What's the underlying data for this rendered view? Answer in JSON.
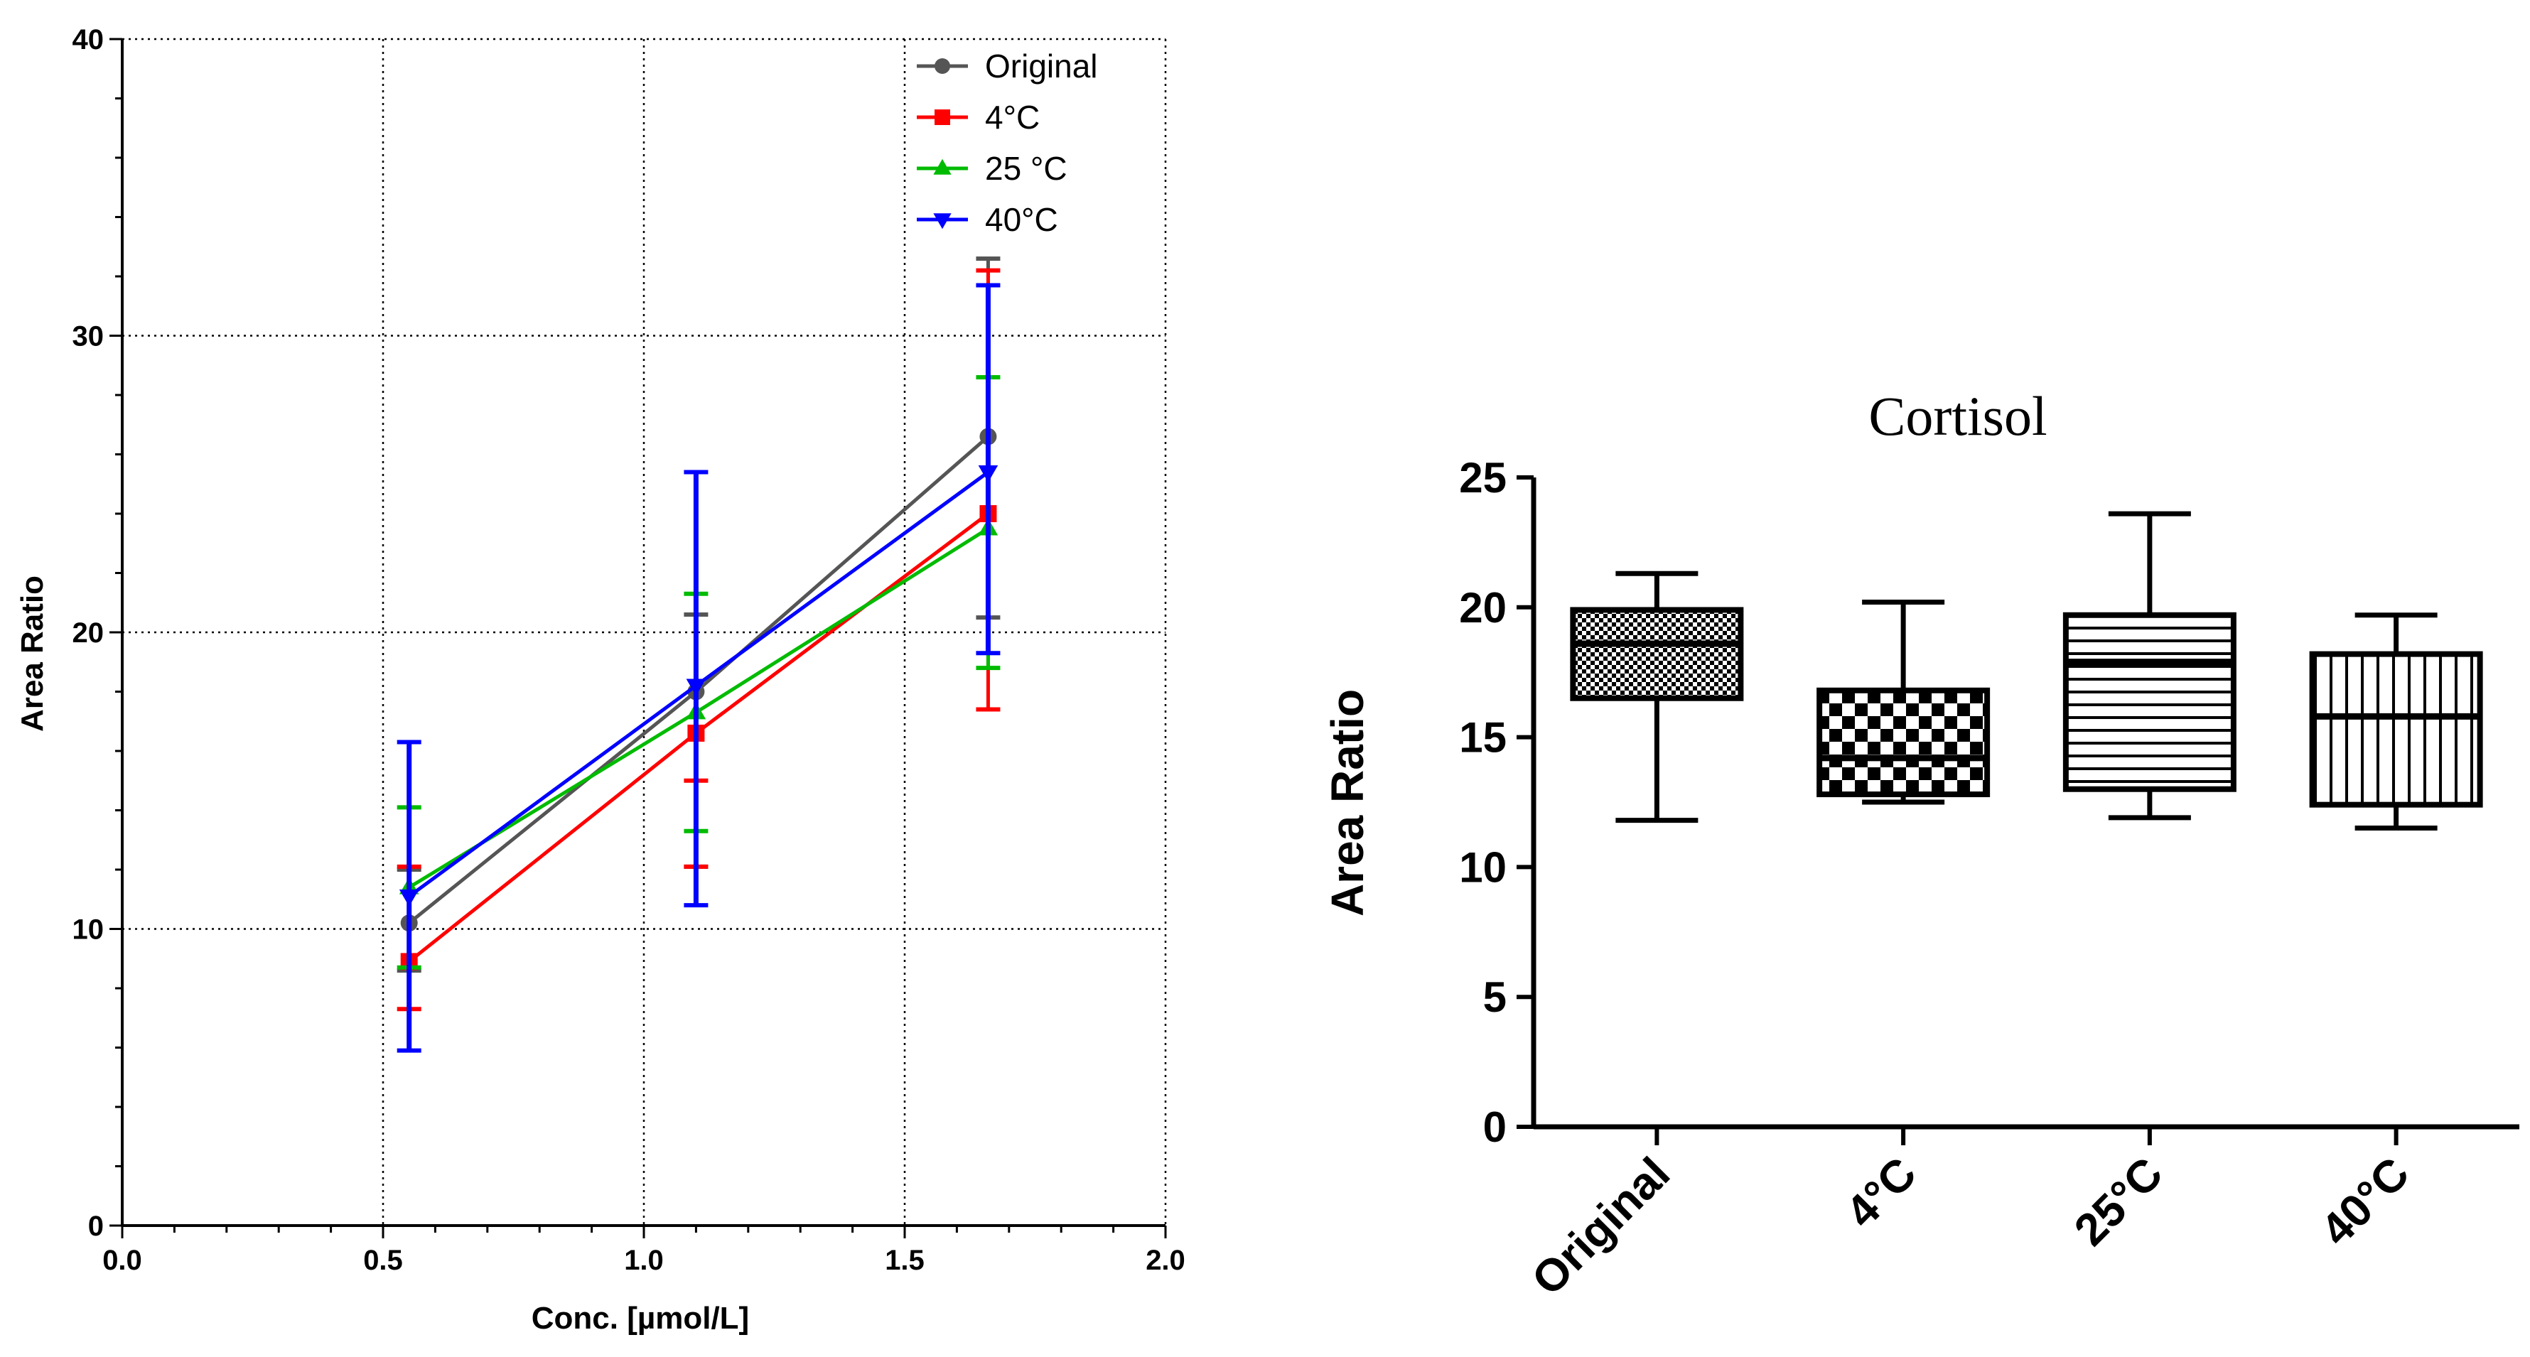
{
  "chart_data": [
    {
      "type": "line",
      "title": "",
      "xlabel": "Conc. [µmol/L]",
      "ylabel": "Area Ratio",
      "xlim": [
        0.0,
        2.0
      ],
      "ylim": [
        0,
        40
      ],
      "x_ticks": [
        "0.0",
        "0.5",
        "1.0",
        "1.5",
        "2.0"
      ],
      "y_ticks": [
        "0",
        "10",
        "20",
        "30",
        "40"
      ],
      "grid": true,
      "legend_position": "top-right",
      "series": [
        {
          "name": "Original",
          "color": "#555555",
          "marker": "circle",
          "x": [
            0.55,
            1.1,
            1.66
          ],
          "y": [
            10.2,
            18.0,
            26.6
          ],
          "err_low": [
            8.6,
            12.1,
            20.5
          ],
          "err_high": [
            12.0,
            20.6,
            32.6
          ]
        },
        {
          "name": "4°C",
          "color": "#ff0000",
          "marker": "square",
          "x": [
            0.55,
            1.1,
            1.66
          ],
          "y": [
            8.9,
            16.6,
            24.0
          ],
          "err_low": [
            7.3,
            12.1,
            17.4
          ],
          "err_high": [
            12.1,
            15.0,
            32.2
          ]
        },
        {
          "name": "25 °C",
          "color": "#00bb00",
          "marker": "triangle-up",
          "x": [
            0.55,
            1.1,
            1.66
          ],
          "y": [
            11.4,
            17.3,
            23.5
          ],
          "err_low": [
            8.7,
            13.3,
            18.8
          ],
          "err_high": [
            14.1,
            21.3,
            28.6
          ]
        },
        {
          "name": "40°C",
          "color": "#0000ff",
          "marker": "triangle-down",
          "x": [
            0.55,
            1.1,
            1.66
          ],
          "y": [
            11.1,
            18.2,
            25.4
          ],
          "err_low": [
            5.9,
            10.8,
            19.3
          ],
          "err_high": [
            16.3,
            25.4,
            31.7
          ]
        }
      ]
    },
    {
      "type": "box",
      "title": "Cortisol",
      "xlabel": "",
      "ylabel": "Area Ratio",
      "ylim": [
        0,
        25
      ],
      "y_ticks": [
        "0",
        "5",
        "10",
        "15",
        "20",
        "25"
      ],
      "categories": [
        "Original",
        "4°C",
        "25°C",
        "40°C"
      ],
      "boxes": [
        {
          "name": "Original",
          "min": 11.8,
          "q1": 16.5,
          "median": 18.6,
          "q3": 19.9,
          "max": 21.3,
          "pattern": "dots"
        },
        {
          "name": "4°C",
          "min": 12.5,
          "q1": 12.8,
          "median": 14.2,
          "q3": 16.8,
          "max": 20.2,
          "pattern": "checker"
        },
        {
          "name": "25°C",
          "min": 11.9,
          "q1": 13.0,
          "median": 17.9,
          "q3": 19.7,
          "max": 23.6,
          "pattern": "horizontal"
        },
        {
          "name": "40°C",
          "min": 11.5,
          "q1": 12.4,
          "median": 15.8,
          "q3": 18.2,
          "max": 19.7,
          "pattern": "vertical"
        }
      ]
    }
  ]
}
